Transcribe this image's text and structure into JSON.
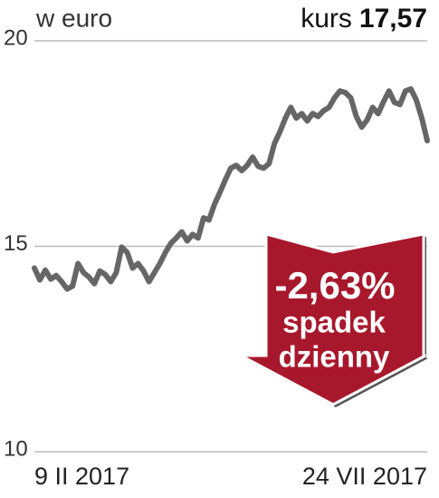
{
  "chart_data": {
    "type": "line",
    "unit_label": "w euro",
    "price_label": "kurs",
    "price_value": "17,57",
    "categories": [
      "9 II 2017",
      null,
      null,
      null,
      null,
      null,
      null,
      null,
      null,
      null,
      null,
      null,
      null,
      null,
      null,
      null,
      null,
      null,
      null,
      null,
      null,
      null,
      null,
      null,
      null,
      null,
      null,
      null,
      null,
      null,
      null,
      null,
      null,
      null,
      null,
      null,
      null,
      null,
      null,
      null,
      null,
      null,
      null,
      null,
      null,
      null,
      null,
      null,
      null,
      null,
      null,
      null,
      null,
      null,
      null,
      null,
      null,
      null,
      null,
      null,
      null,
      null,
      null,
      null,
      null,
      null,
      null,
      null,
      null,
      null,
      null,
      null,
      "24 VII 2017"
    ],
    "values": [
      14.47,
      14.18,
      14.42,
      14.2,
      14.29,
      14.14,
      13.96,
      14.03,
      14.58,
      14.36,
      14.25,
      14.09,
      14.4,
      14.31,
      14.14,
      14.36,
      14.98,
      14.85,
      14.47,
      14.58,
      14.4,
      14.14,
      14.36,
      14.58,
      14.85,
      15.07,
      15.2,
      15.35,
      15.13,
      15.29,
      15.2,
      15.69,
      15.64,
      16.02,
      16.31,
      16.62,
      16.9,
      16.97,
      16.84,
      16.97,
      17.17,
      16.95,
      16.9,
      17.01,
      17.5,
      17.79,
      18.12,
      18.38,
      18.12,
      18.23,
      18.05,
      18.23,
      18.16,
      18.3,
      18.38,
      18.61,
      18.78,
      18.74,
      18.61,
      18.16,
      17.9,
      18.08,
      18.38,
      18.23,
      18.52,
      18.78,
      18.5,
      18.45,
      18.78,
      18.83,
      18.56,
      18.12,
      17.57
    ],
    "color": "#666666",
    "ylim": [
      10,
      20
    ],
    "yticks": [
      10,
      15,
      20
    ],
    "grid": true,
    "annotation": {
      "change": "-2,63%",
      "lines": [
        "spadek",
        "dzienny"
      ],
      "color": "#a8182c"
    }
  }
}
